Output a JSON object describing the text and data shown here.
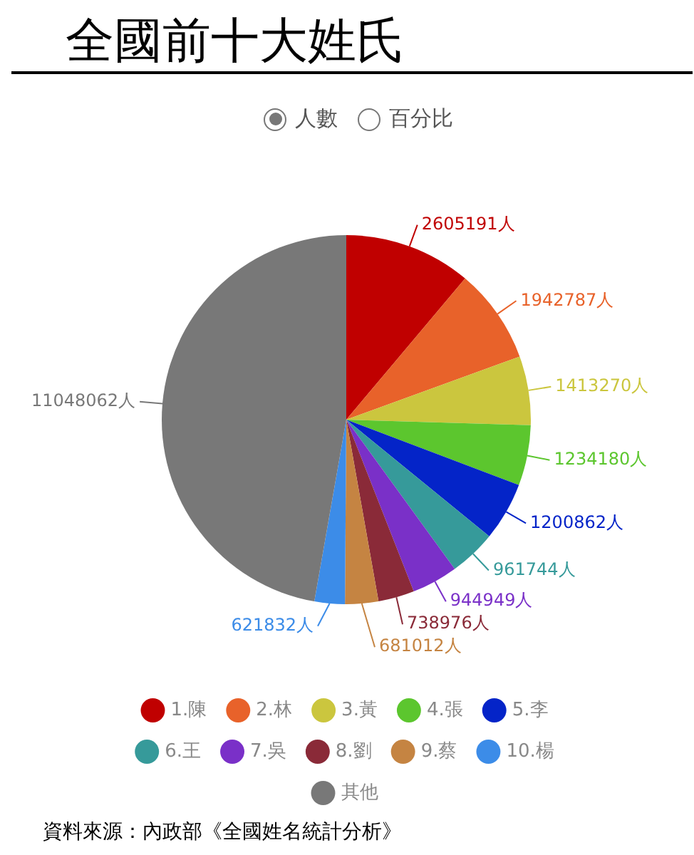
{
  "chart_data": {
    "type": "pie",
    "title": "全國前十大姓氏",
    "categories": [
      "1.陳",
      "2.林",
      "3.黃",
      "4.張",
      "5.李",
      "6.王",
      "7.吳",
      "8.劉",
      "9.蔡",
      "10.楊",
      "其他"
    ],
    "values": [
      2605191,
      1942787,
      1413270,
      1234180,
      1200862,
      961744,
      944949,
      738976,
      681012,
      621832,
      11048062
    ],
    "value_labels": [
      "2605191人",
      "1942787人",
      "1413270人",
      "1234180人",
      "1200862人",
      "961744人",
      "944949人",
      "738976人",
      "681012人",
      "621832人",
      "11048062人"
    ],
    "colors": [
      "#c00000",
      "#e8622a",
      "#cbc63e",
      "#5cc62e",
      "#0424c8",
      "#369a9a",
      "#7a30c8",
      "#8a2a38",
      "#c58442",
      "#3c8ce8",
      "#787878"
    ],
    "legend": "bottom",
    "annotations": [
      "人數",
      "百分比",
      "資料來源：內政部《全國姓名統計分析》"
    ]
  }
}
